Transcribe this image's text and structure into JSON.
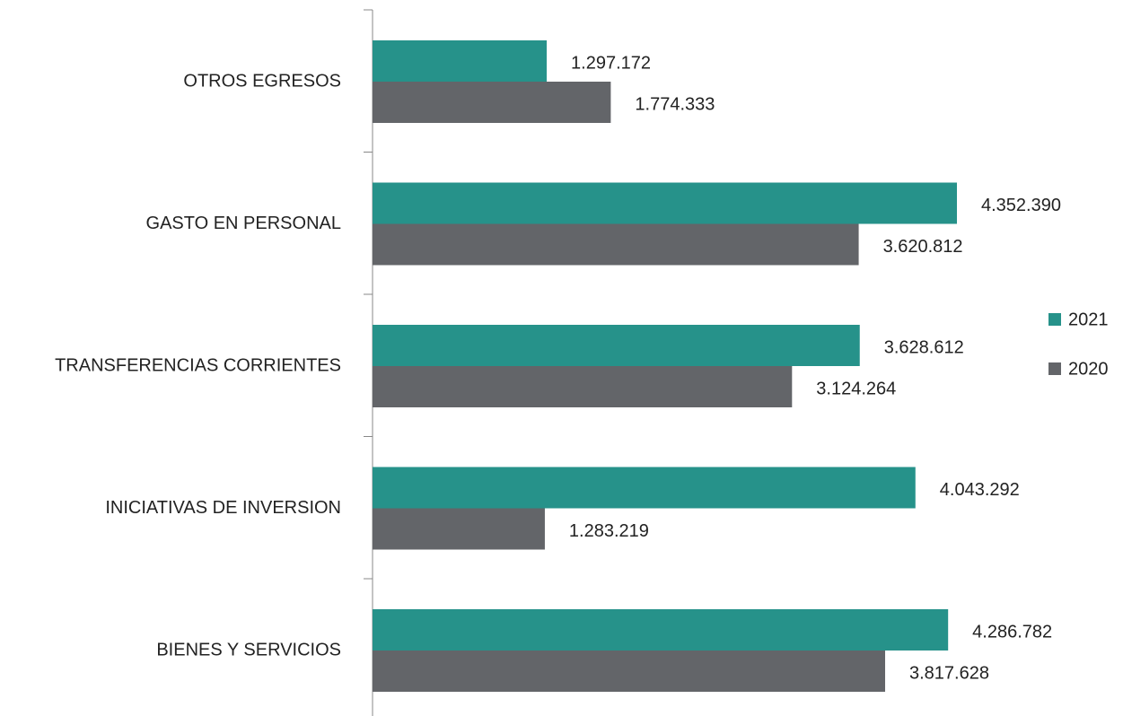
{
  "chart_data": {
    "type": "hbar",
    "categories": [
      "OTROS EGRESOS",
      "GASTO EN PERSONAL",
      "TRANSFERENCIAS CORRIENTES",
      "INICIATIVAS DE INVERSION",
      "BIENES Y SERVICIOS"
    ],
    "series": [
      {
        "name": "2021",
        "color": "#26928a",
        "values": [
          1297172,
          4352390,
          3628612,
          4043292,
          4286782
        ],
        "value_labels": [
          "1.297.172",
          "4.352.390",
          "3.628.612",
          "4.043.292",
          "4.286.782"
        ]
      },
      {
        "name": "2020",
        "color": "#636569",
        "values": [
          1774333,
          3620812,
          3124264,
          1283219,
          3817628
        ],
        "value_labels": [
          "1.774.333",
          "3.620.812",
          "3.124.264",
          "1.283.219",
          "3.817.628"
        ]
      }
    ],
    "legend": "right"
  }
}
